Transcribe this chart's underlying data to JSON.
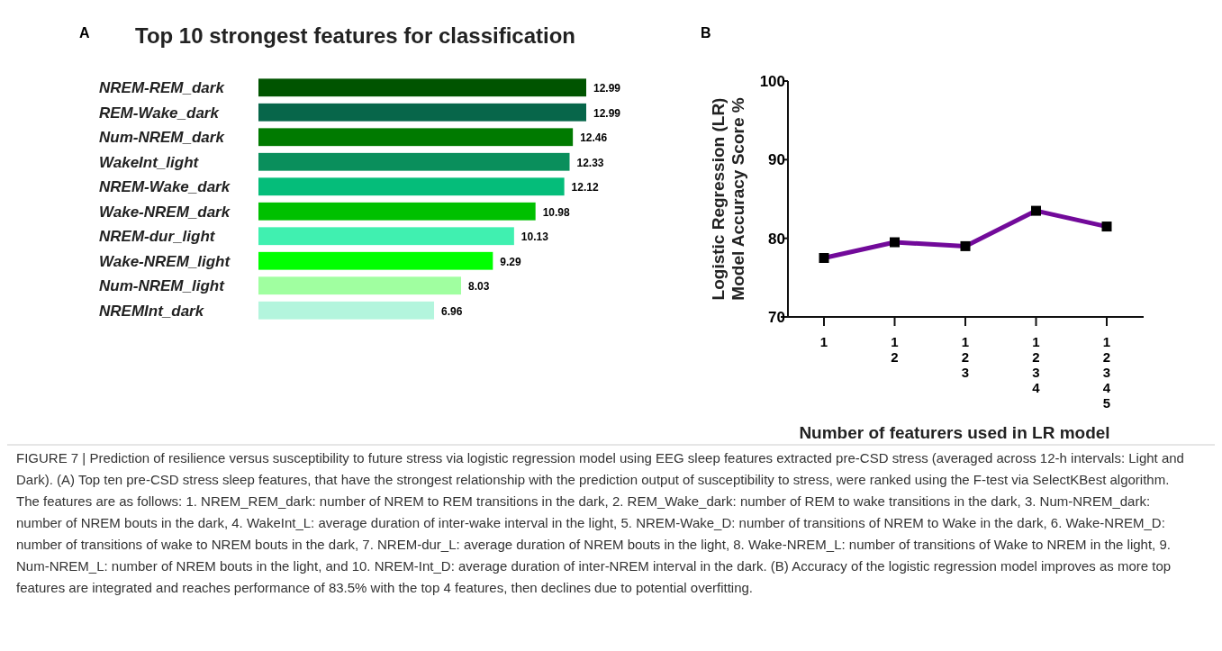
{
  "chart_data": [
    {
      "type": "bar",
      "orientation": "horizontal",
      "title": "Top 10 strongest features for classification",
      "categories": [
        "NREM-REM_dark",
        "REM-Wake_dark",
        "Num-NREM_dark",
        "WakeInt_light",
        "NREM-Wake_dark",
        "Wake-NREM_dark",
        "NREM-dur_light",
        "Wake-NREM_light",
        "Num-NREM_light",
        "NREMInt_dark"
      ],
      "values": [
        12.99,
        12.99,
        12.46,
        12.33,
        12.12,
        10.98,
        10.13,
        9.29,
        8.03,
        6.96
      ],
      "colors": [
        "#005400",
        "#07664a",
        "#007a00",
        "#0a8f5c",
        "#05bd7a",
        "#00c000",
        "#40f0b0",
        "#00ff00",
        "#a0ffa0",
        "#b3f5dd"
      ],
      "data_labels": true,
      "annotations": [
        "A",
        "FIGURE 7 | Prediction of resilience versus susceptibility to future stress via logistic regression model using EEG sleep features extracted pre-CSD stress (averaged across 12-h intervals: Light and Dark). (A) Top ten pre-CSD stress sleep features, that have the strongest relationship with the prediction output of susceptibility to stress, were ranked using the F-test via SelectKBest algorithm. The features are as follows: 1. NREM_REM_dark: number of NREM to REM transitions in the dark, 2. REM_Wake_dark: number of REM to wake transitions in the dark, 3. Num-NREM_dark: number of NREM bouts in the dark, 4. WakeInt_L: average duration of inter-wake interval in the light, 5. NREM-Wake_D: number of transitions of NREM to Wake in the dark, 6. Wake-NREM_D: number of transitions of wake to NREM bouts in the dark, 7. NREM-dur_L: average duration of NREM bouts in the light, 8. Wake-NREM_L: number of transitions of Wake to NREM in the light, 9. Num-NREM_L: number of NREM bouts in the light, and 10. NREM-Int_D: average duration of inter-NREM interval in the dark. (B) Accuracy of the logistic regression model improves as more top features are integrated and reaches performance of 83.5% with the top 4 features, then declines due to potential overfitting."
      ]
    },
    {
      "type": "line",
      "categories": [
        "1",
        "1\n2",
        "1\n2\n3",
        "1\n2\n3\n4",
        "1\n2\n3\n4\n5"
      ],
      "series": [
        {
          "color": "#720a9a",
          "values": [
            77.5,
            79.5,
            79.0,
            83.5,
            81.5
          ]
        }
      ],
      "ylim": [
        70,
        100
      ],
      "yticks": [
        70,
        80,
        90,
        100
      ],
      "marker": "square",
      "xlabel": "Number of featurers used in LR model",
      "ylabel": "Logistic Regression (LR)\nModel Accuracy Score %",
      "annotations": [
        "B"
      ]
    }
  ]
}
